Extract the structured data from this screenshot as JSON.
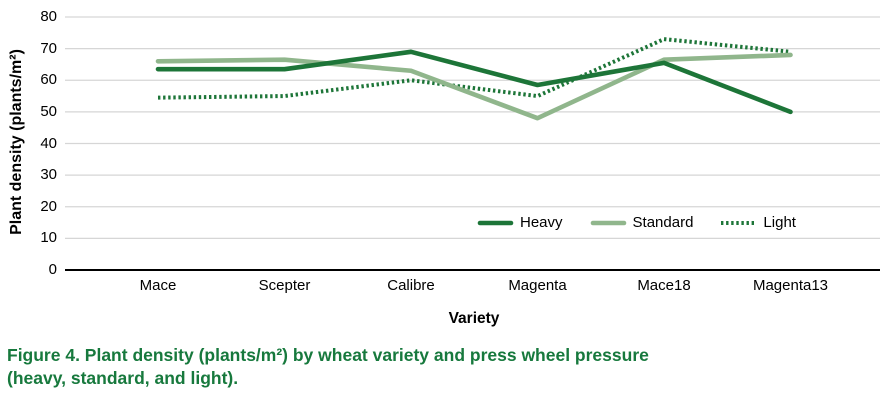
{
  "figure": {
    "caption_line1": "Figure 4. Plant density (plants/m²) by wheat variety and press wheel pressure",
    "caption_line2": "(heavy, standard, and light)."
  },
  "colors": {
    "dark_green": "#1D7538",
    "light_green": "#90B68C",
    "caption_green": "#17793D",
    "gridline": "#D6D6D6",
    "axis_line": "#000000"
  },
  "chart_data": {
    "type": "line",
    "title": "",
    "xlabel": "Variety",
    "ylabel": "Plant density (plants/m²)",
    "categories": [
      "Mace",
      "Scepter",
      "Calibre",
      "Magenta",
      "Mace18",
      "Magenta13"
    ],
    "series": [
      {
        "name": "Heavy",
        "color": "#1D7538",
        "style": "solid",
        "values": [
          63.5,
          63.5,
          69,
          58.5,
          65.5,
          50
        ]
      },
      {
        "name": "Standard",
        "color": "#90B68C",
        "style": "solid",
        "values": [
          66,
          66.5,
          63,
          48,
          66.5,
          68
        ]
      },
      {
        "name": "Light",
        "color": "#1D7538",
        "style": "dotted",
        "values": [
          54.5,
          55,
          60,
          55,
          73,
          69
        ]
      }
    ],
    "ylim": [
      0,
      80
    ],
    "yticks": [
      0,
      10,
      20,
      30,
      40,
      50,
      60,
      70,
      80
    ],
    "grid": "horizontal",
    "legend_position": "inside-bottom-right"
  }
}
